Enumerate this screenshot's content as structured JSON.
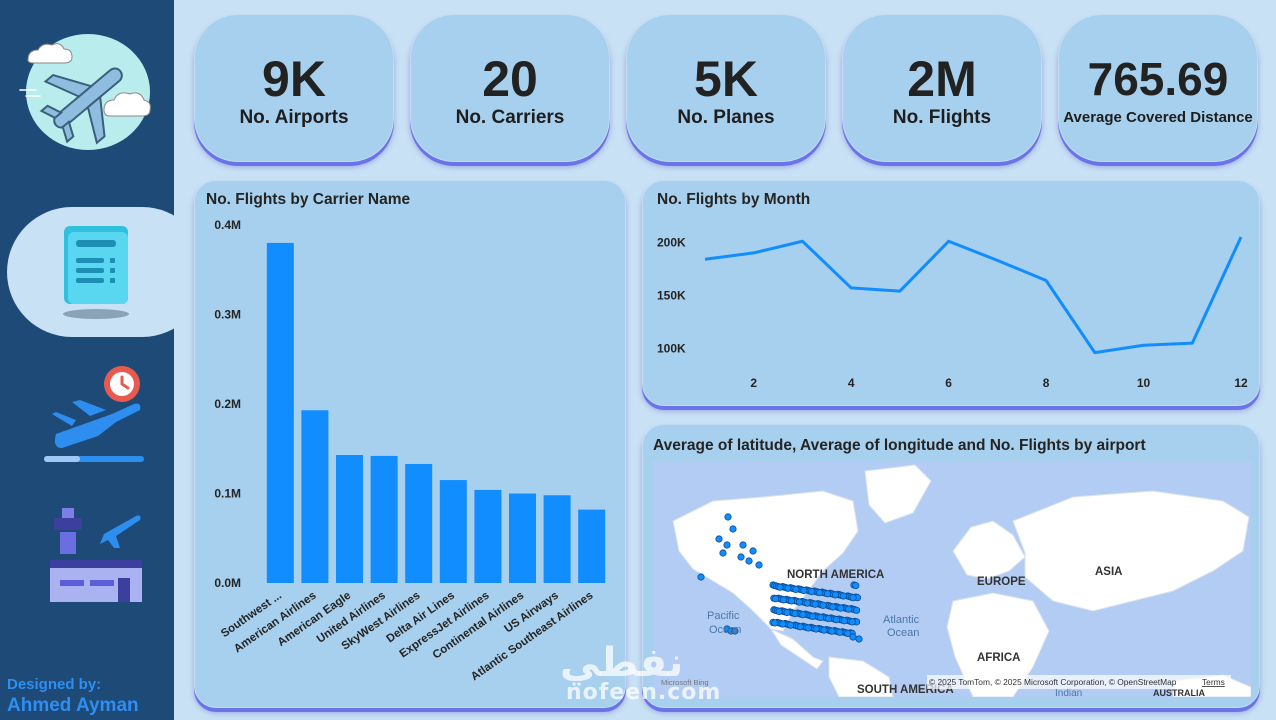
{
  "sidebar": {
    "designer_label": "Designed by:",
    "designer_name": "Ahmed Ayman",
    "nav": [
      {
        "icon": "report-icon",
        "active": true
      },
      {
        "icon": "plane-departure-clock-icon",
        "active": false
      },
      {
        "icon": "airport-tower-icon",
        "active": false
      }
    ]
  },
  "kpis": [
    {
      "value": "9K",
      "label": "No. Airports"
    },
    {
      "value": "20",
      "label": "No. Carriers"
    },
    {
      "value": "5K",
      "label": "No. Planes"
    },
    {
      "value": "2M",
      "label": "No. Flights"
    },
    {
      "value": "765.69",
      "label": "Average Covered Distance"
    }
  ],
  "carrier_chart": {
    "title": "No. Flights by Carrier Name"
  },
  "month_chart": {
    "title": "No. Flights by Month"
  },
  "map": {
    "title": "Average of latitude, Average of longitude and No. Flights by airport",
    "labels": {
      "north_america": "NORTH AMERICA",
      "south_america": "SOUTH AMERICA",
      "europe": "EUROPE",
      "asia": "ASIA",
      "africa": "AFRICA",
      "pacific1": "Pacific",
      "pacific2": "Ocean",
      "atlantic1": "Atlantic",
      "atlantic2": "Ocean",
      "indian": "Indian",
      "australia": "AUSTRALIA"
    },
    "attribution": "© 2025 TomTom, © 2025 Microsoft Corporation, © OpenStreetMap",
    "terms": "Terms",
    "bing": "Microsoft Bing"
  },
  "watermark": {
    "arabic": "نفطي",
    "latin": "nofeen.com"
  },
  "colors": {
    "sidebar": "#1d4a77",
    "background": "#c9e1f4",
    "card": "#a7d0ee",
    "bar": "#118dff",
    "line": "#118dff",
    "card_shadow": "#6b73e8",
    "designer_text": "#2f8ef2"
  },
  "chart_data": [
    {
      "type": "bar",
      "title": "No. Flights by Carrier Name",
      "categories": [
        "Southwest ...",
        "American Airlines",
        "American Eagle",
        "United Airlines",
        "SkyWest Airlines",
        "Delta Air Lines",
        "ExpressJet Airlines",
        "Continental Airlines",
        "US Airways",
        "Atlantic Southeast Airlines"
      ],
      "values": [
        380000,
        193000,
        143000,
        142000,
        133000,
        115000,
        104000,
        100000,
        98000,
        82000
      ],
      "ylim": [
        0,
        400000
      ],
      "yticks": [
        0,
        100000,
        200000,
        300000,
        400000
      ],
      "ytick_labels": [
        "0.0M",
        "0.1M",
        "0.2M",
        "0.3M",
        "0.4M"
      ],
      "grid": false
    },
    {
      "type": "line",
      "title": "No. Flights by Month",
      "x": [
        1,
        2,
        3,
        4,
        5,
        6,
        7,
        8,
        9,
        10,
        11,
        12
      ],
      "values": [
        184000,
        190000,
        201000,
        157000,
        154000,
        201000,
        183000,
        164000,
        96000,
        103000,
        105000,
        205000
      ],
      "xticks": [
        2,
        4,
        6,
        8,
        10,
        12
      ],
      "xlim": [
        1,
        12
      ],
      "yticks": [
        100000,
        150000,
        200000
      ],
      "ytick_labels": [
        "100K",
        "150K",
        "200K"
      ],
      "ylim": [
        90000,
        205000
      ],
      "grid": false
    }
  ]
}
